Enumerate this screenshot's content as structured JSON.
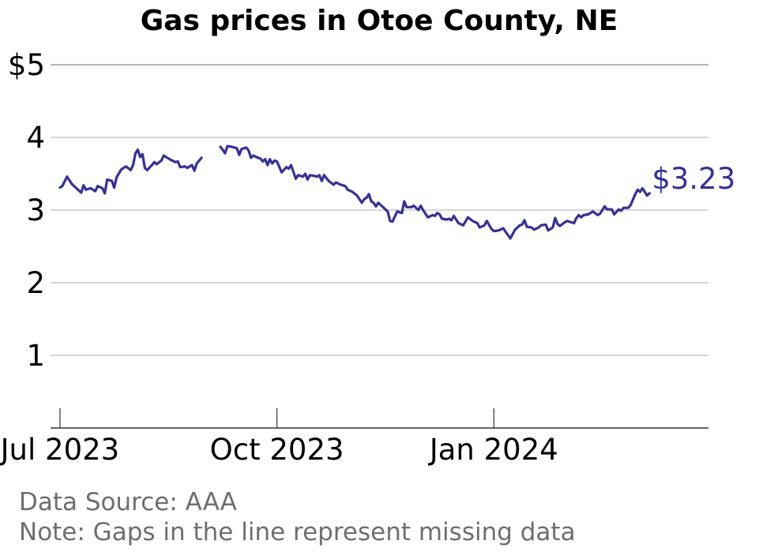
{
  "chart_data": {
    "type": "line",
    "title": "Gas prices in Otoe County, NE",
    "xlabel": "",
    "ylabel": "",
    "x_range": [
      "2023-06-27",
      "2024-04-01"
    ],
    "ylim": [
      0,
      5
    ],
    "y_ticks": [
      {
        "value": 1,
        "label": "1"
      },
      {
        "value": 2,
        "label": "2"
      },
      {
        "value": 3,
        "label": "3"
      },
      {
        "value": 4,
        "label": "4"
      },
      {
        "value": 5,
        "label": "$5"
      }
    ],
    "x_ticks": [
      {
        "date": "2023-07-01",
        "label": "Jul 2023"
      },
      {
        "date": "2023-10-01",
        "label": "Oct 2023"
      },
      {
        "date": "2024-01-01",
        "label": "Jan 2024"
      }
    ],
    "grid": true,
    "line_color": "#36309a",
    "end_label": "$3.23",
    "series": [
      {
        "segments": [
          [
            [
              "2023-07-01",
              3.31
            ],
            [
              "2023-07-02",
              3.33
            ],
            [
              "2023-07-04",
              3.46
            ],
            [
              "2023-07-06",
              3.36
            ],
            [
              "2023-07-08",
              3.3
            ],
            [
              "2023-07-10",
              3.24
            ],
            [
              "2023-07-11",
              3.34
            ],
            [
              "2023-07-12",
              3.28
            ],
            [
              "2023-07-14",
              3.3
            ],
            [
              "2023-07-16",
              3.26
            ],
            [
              "2023-07-17",
              3.33
            ],
            [
              "2023-07-19",
              3.3
            ],
            [
              "2023-07-20",
              3.23
            ],
            [
              "2023-07-21",
              3.42
            ],
            [
              "2023-07-23",
              3.4
            ],
            [
              "2023-07-24",
              3.31
            ],
            [
              "2023-07-25",
              3.45
            ],
            [
              "2023-07-27",
              3.56
            ],
            [
              "2023-07-29",
              3.6
            ],
            [
              "2023-07-31",
              3.55
            ],
            [
              "2023-08-01",
              3.62
            ],
            [
              "2023-08-02",
              3.78
            ],
            [
              "2023-08-03",
              3.83
            ],
            [
              "2023-08-04",
              3.73
            ],
            [
              "2023-08-05",
              3.77
            ],
            [
              "2023-08-06",
              3.58
            ],
            [
              "2023-08-07",
              3.55
            ],
            [
              "2023-08-09",
              3.62
            ],
            [
              "2023-08-10",
              3.66
            ],
            [
              "2023-08-11",
              3.63
            ],
            [
              "2023-08-13",
              3.68
            ],
            [
              "2023-08-14",
              3.75
            ],
            [
              "2023-08-16",
              3.71
            ],
            [
              "2023-08-17",
              3.69
            ],
            [
              "2023-08-19",
              3.66
            ],
            [
              "2023-08-20",
              3.67
            ],
            [
              "2023-08-21",
              3.59
            ],
            [
              "2023-08-23",
              3.6
            ],
            [
              "2023-08-24",
              3.58
            ],
            [
              "2023-08-26",
              3.62
            ],
            [
              "2023-08-27",
              3.54
            ],
            [
              "2023-08-28",
              3.64
            ],
            [
              "2023-08-30",
              3.72
            ]
          ],
          [
            [
              "2023-09-07",
              3.87
            ],
            [
              "2023-09-08",
              3.83
            ],
            [
              "2023-09-09",
              3.78
            ],
            [
              "2023-09-10",
              3.88
            ],
            [
              "2023-09-12",
              3.87
            ],
            [
              "2023-09-14",
              3.85
            ],
            [
              "2023-09-15",
              3.76
            ],
            [
              "2023-09-16",
              3.84
            ],
            [
              "2023-09-18",
              3.86
            ],
            [
              "2023-09-19",
              3.82
            ],
            [
              "2023-09-20",
              3.72
            ],
            [
              "2023-09-21",
              3.75
            ],
            [
              "2023-09-23",
              3.72
            ],
            [
              "2023-09-24",
              3.71
            ],
            [
              "2023-09-25",
              3.67
            ],
            [
              "2023-09-26",
              3.7
            ],
            [
              "2023-09-27",
              3.62
            ],
            [
              "2023-09-28",
              3.7
            ],
            [
              "2023-09-29",
              3.64
            ],
            [
              "2023-09-30",
              3.68
            ],
            [
              "2023-10-01",
              3.67
            ],
            [
              "2023-10-03",
              3.52
            ],
            [
              "2023-10-05",
              3.59
            ],
            [
              "2023-10-06",
              3.57
            ],
            [
              "2023-10-07",
              3.62
            ],
            [
              "2023-10-09",
              3.43
            ],
            [
              "2023-10-10",
              3.48
            ],
            [
              "2023-10-12",
              3.46
            ],
            [
              "2023-10-13",
              3.5
            ],
            [
              "2023-10-14",
              3.42
            ],
            [
              "2023-10-15",
              3.48
            ],
            [
              "2023-10-17",
              3.47
            ],
            [
              "2023-10-18",
              3.46
            ],
            [
              "2023-10-19",
              3.48
            ],
            [
              "2023-10-20",
              3.4
            ],
            [
              "2023-10-21",
              3.48
            ],
            [
              "2023-10-23",
              3.4
            ],
            [
              "2023-10-25",
              3.35
            ],
            [
              "2023-10-26",
              3.38
            ],
            [
              "2023-10-28",
              3.35
            ],
            [
              "2023-10-30",
              3.33
            ],
            [
              "2023-10-31",
              3.28
            ],
            [
              "2023-11-02",
              3.25
            ],
            [
              "2023-11-04",
              3.2
            ],
            [
              "2023-11-05",
              3.15
            ],
            [
              "2023-11-06",
              3.1
            ],
            [
              "2023-11-07",
              3.15
            ],
            [
              "2023-11-08",
              3.17
            ],
            [
              "2023-11-09",
              3.22
            ],
            [
              "2023-11-10",
              3.12
            ],
            [
              "2023-11-11",
              3.1
            ],
            [
              "2023-11-12",
              3.05
            ],
            [
              "2023-11-13",
              3.1
            ],
            [
              "2023-11-15",
              3.04
            ],
            [
              "2023-11-17",
              2.98
            ],
            [
              "2023-11-18",
              2.85
            ],
            [
              "2023-11-19",
              2.84
            ],
            [
              "2023-11-21",
              2.98
            ],
            [
              "2023-11-22",
              2.97
            ],
            [
              "2023-11-23",
              2.96
            ],
            [
              "2023-11-24",
              3.12
            ],
            [
              "2023-11-25",
              3.04
            ],
            [
              "2023-11-27",
              3.04
            ],
            [
              "2023-11-28",
              3.06
            ],
            [
              "2023-11-30",
              3.0
            ],
            [
              "2023-12-01",
              3.06
            ],
            [
              "2023-12-02",
              3.0
            ],
            [
              "2023-12-03",
              2.95
            ],
            [
              "2023-12-04",
              2.9
            ],
            [
              "2023-12-06",
              2.93
            ],
            [
              "2023-12-07",
              2.92
            ],
            [
              "2023-12-08",
              2.96
            ],
            [
              "2023-12-09",
              2.94
            ],
            [
              "2023-12-10",
              2.88
            ],
            [
              "2023-12-12",
              2.87
            ],
            [
              "2023-12-13",
              2.88
            ],
            [
              "2023-12-14",
              2.86
            ],
            [
              "2023-12-15",
              2.92
            ],
            [
              "2023-12-17",
              2.82
            ],
            [
              "2023-12-19",
              2.79
            ],
            [
              "2023-12-21",
              2.9
            ],
            [
              "2023-12-23",
              2.85
            ],
            [
              "2023-12-25",
              2.82
            ],
            [
              "2023-12-26",
              2.76
            ],
            [
              "2023-12-28",
              2.79
            ],
            [
              "2023-12-29",
              2.85
            ],
            [
              "2023-12-31",
              2.74
            ],
            [
              "2024-01-01",
              2.71
            ],
            [
              "2024-01-03",
              2.72
            ],
            [
              "2024-01-05",
              2.75
            ],
            [
              "2024-01-06",
              2.7
            ],
            [
              "2024-01-08",
              2.61
            ],
            [
              "2024-01-10",
              2.73
            ],
            [
              "2024-01-12",
              2.79
            ],
            [
              "2024-01-13",
              2.8
            ],
            [
              "2024-01-14",
              2.86
            ],
            [
              "2024-01-15",
              2.77
            ],
            [
              "2024-01-17",
              2.76
            ],
            [
              "2024-01-18",
              2.73
            ],
            [
              "2024-01-20",
              2.76
            ],
            [
              "2024-01-21",
              2.79
            ],
            [
              "2024-01-23",
              2.8
            ],
            [
              "2024-01-24",
              2.72
            ],
            [
              "2024-01-26",
              2.76
            ],
            [
              "2024-01-27",
              2.89
            ],
            [
              "2024-01-28",
              2.81
            ],
            [
              "2024-01-29",
              2.78
            ],
            [
              "2024-01-31",
              2.83
            ],
            [
              "2024-02-01",
              2.85
            ],
            [
              "2024-02-03",
              2.83
            ],
            [
              "2024-02-04",
              2.82
            ],
            [
              "2024-02-05",
              2.89
            ],
            [
              "2024-02-06",
              2.93
            ],
            [
              "2024-02-07",
              2.9
            ],
            [
              "2024-02-08",
              2.93
            ],
            [
              "2024-02-10",
              2.94
            ],
            [
              "2024-02-12",
              2.98
            ],
            [
              "2024-02-14",
              2.93
            ],
            [
              "2024-02-15",
              2.95
            ],
            [
              "2024-02-17",
              3.05
            ],
            [
              "2024-02-18",
              3.01
            ],
            [
              "2024-02-20",
              3.01
            ],
            [
              "2024-02-21",
              2.94
            ],
            [
              "2024-02-23",
              3.01
            ],
            [
              "2024-02-24",
              2.99
            ],
            [
              "2024-02-25",
              3.03
            ],
            [
              "2024-02-27",
              3.03
            ],
            [
              "2024-02-28",
              3.07
            ],
            [
              "2024-03-01",
              3.22
            ],
            [
              "2024-03-02",
              3.28
            ],
            [
              "2024-03-03",
              3.25
            ],
            [
              "2024-03-04",
              3.3
            ],
            [
              "2024-03-06",
              3.2
            ],
            [
              "2024-03-07",
              3.23
            ]
          ]
        ]
      }
    ]
  },
  "footer": {
    "source": "Data Source: AAA",
    "note": "Note: Gaps in the line represent missing data"
  }
}
